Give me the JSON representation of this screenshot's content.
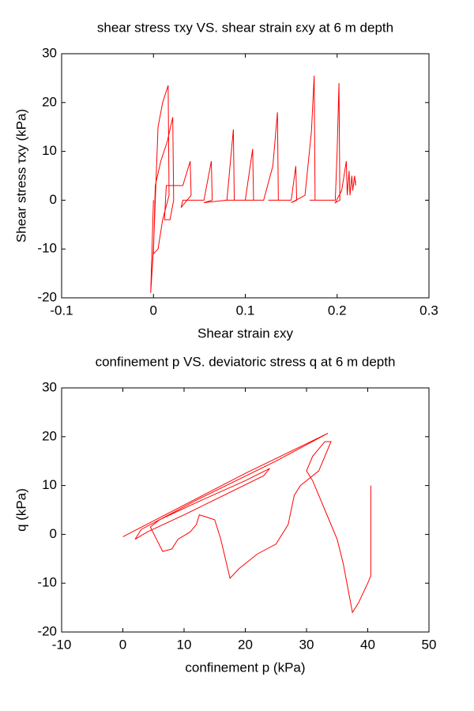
{
  "chart_data": [
    {
      "type": "line",
      "title": "shear stress τxy VS. shear strain εxy at 6 m depth",
      "x_label": "Shear strain εxy",
      "y_label": "Shear stress τxy (kPa)",
      "xlim": [
        -0.1,
        0.3
      ],
      "xticks": [
        -0.1,
        0,
        0.1,
        0.2,
        0.3
      ],
      "ylim": [
        -20,
        30
      ],
      "yticks": [
        -20,
        -10,
        0,
        10,
        20,
        30
      ],
      "series": [
        {
          "color": "#ff0000",
          "x": [
            0,
            -0.003,
            0.0,
            0.005,
            0.01,
            0.016,
            0.017,
            0.01,
            0.005,
            0.0,
            0.002,
            0.008,
            0.015,
            0.021,
            0.022,
            0.018,
            0.012,
            0.014,
            0.032,
            0.04,
            0.041,
            0.03,
            0.032,
            0.055,
            0.063,
            0.064,
            0.055,
            0.08,
            0.087,
            0.088,
            0.078,
            0.1,
            0.108,
            0.109,
            0.1,
            0.12,
            0.13,
            0.135,
            0.136,
            0.125,
            0.15,
            0.155,
            0.156,
            0.15,
            0.165,
            0.172,
            0.175,
            0.176,
            0.17,
            0.198,
            0.2,
            0.202,
            0.203,
            0.198,
            0.205,
            0.21,
            0.211,
            0.213,
            0.214,
            0.216,
            0.217,
            0.219,
            0.22,
            0.22
          ],
          "values": [
            0,
            -19,
            -10,
            15,
            20,
            23.5,
            1,
            -4,
            -10,
            -11,
            3,
            8,
            12,
            17,
            0,
            -4,
            -4,
            3,
            3,
            8,
            1,
            -1.5,
            0,
            0,
            8,
            0,
            -0.5,
            0,
            14.5,
            0,
            0,
            0,
            10.5,
            0,
            0,
            0,
            7,
            18,
            0,
            0,
            0,
            7,
            0,
            -0.5,
            1,
            14,
            25.5,
            0,
            0,
            0,
            10,
            24,
            0,
            -0.5,
            2,
            8,
            1,
            6,
            1,
            5,
            2,
            5,
            3,
            4
          ]
        }
      ]
    },
    {
      "type": "line",
      "title": "confinement p VS. deviatoric stress q at 6 m depth",
      "x_label": "confinement p (kPa)",
      "y_label": "q (kPa)",
      "xlim": [
        -10,
        50
      ],
      "xticks": [
        -10,
        0,
        10,
        20,
        30,
        40,
        50
      ],
      "ylim": [
        -20,
        30
      ],
      "yticks": [
        -20,
        -10,
        0,
        10,
        20,
        30
      ],
      "series": [
        {
          "color": "#ff0000",
          "x": [
            0,
            10,
            20,
            33.5,
            25,
            12,
            3,
            2,
            4,
            10,
            23,
            24,
            20,
            12,
            6,
            4.5,
            5.5,
            6.5,
            8,
            9,
            11,
            12,
            12.5,
            15,
            16,
            17.5,
            19,
            22,
            25,
            27,
            28,
            29,
            32,
            34,
            33,
            31,
            30,
            31,
            33,
            35,
            36,
            37.5,
            38.5,
            40,
            40.5,
            40.5,
            40.5
          ],
          "values": [
            -0.5,
            6,
            12.5,
            20.7,
            15,
            7,
            1,
            -1,
            0.5,
            4,
            12,
            13.5,
            11,
            6.5,
            3,
            1.5,
            -1,
            -3.5,
            -3,
            -1,
            0.5,
            2,
            4,
            3,
            -1,
            -9,
            -7,
            -4,
            -2,
            2,
            8,
            10,
            13,
            19,
            19,
            16,
            13,
            11,
            5,
            -1,
            -6,
            -16,
            -14,
            -10,
            -8.5,
            10,
            -8
          ]
        }
      ]
    }
  ]
}
